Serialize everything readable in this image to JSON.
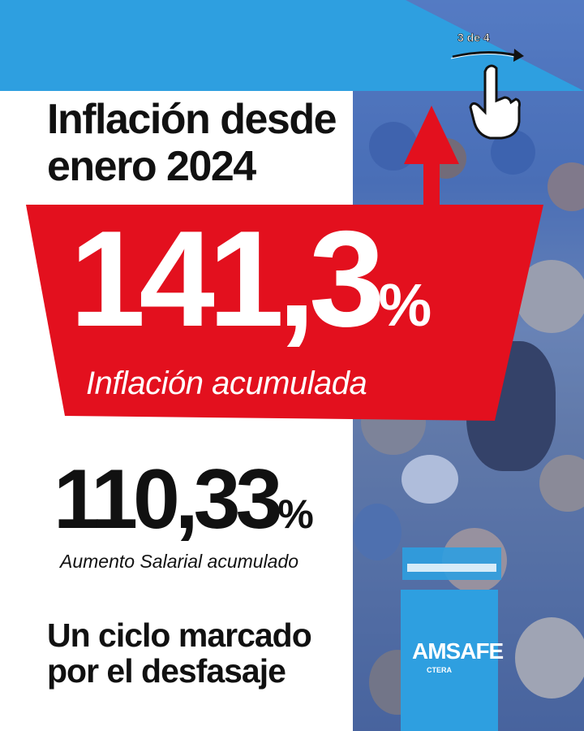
{
  "header": {
    "pager": "3 de 4",
    "accent_color": "#2e9fe0"
  },
  "title": {
    "line1": "Inflación desde",
    "line2": "enero 2024"
  },
  "inflation": {
    "value": "141,3",
    "unit": "%",
    "label": "Inflación acumulada",
    "color": "#e3101e"
  },
  "salary": {
    "value": "110,33",
    "unit": "%",
    "label": "Aumento Salarial acumulado"
  },
  "closing": {
    "line1": "Un ciclo marcado",
    "line2": "por el desfasaje"
  },
  "logo": {
    "name": "AMSAFE",
    "sub": "CTERA"
  },
  "icons": {
    "arrow": "arrow-up-icon",
    "hand": "tap-hand-icon",
    "swipe": "swipe-arrow-icon"
  }
}
